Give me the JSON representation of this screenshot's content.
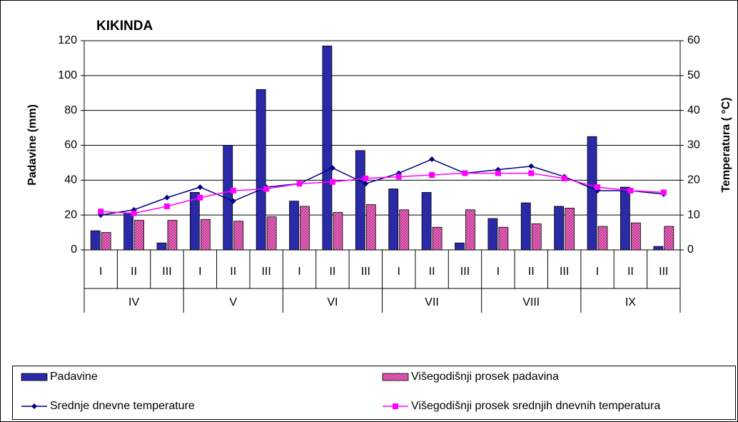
{
  "chart_data": {
    "type": "combo",
    "title": "KIKINDA",
    "y_label": "Padavine (mm)",
    "y2_label": "Temperatura ( °C)",
    "categories": [
      "I",
      "II",
      "III",
      "I",
      "II",
      "III",
      "I",
      "II",
      "III",
      "I",
      "II",
      "III",
      "I",
      "II",
      "III",
      "I",
      "II",
      "III"
    ],
    "groups": [
      "IV",
      "V",
      "VI",
      "VII",
      "VIII",
      "IX"
    ],
    "series": [
      {
        "name": "Padavine",
        "type": "bar",
        "color": "#3333cc",
        "values": [
          11,
          21,
          4,
          33,
          60,
          92,
          28,
          117,
          57,
          35,
          33,
          4,
          18,
          27,
          25,
          65,
          36,
          2
        ]
      },
      {
        "name": "Višegodišnji prosek padavina",
        "type": "bar",
        "color": "#ff66cc",
        "values": [
          10,
          17,
          17,
          17.5,
          16.5,
          19,
          25,
          21.5,
          26,
          23,
          13,
          23,
          13,
          15,
          24,
          13.5,
          15.5,
          13.5
        ]
      },
      {
        "name": "Srednje dnevne temperature",
        "type": "line",
        "axis": "y2",
        "color": "#000080",
        "marker": "diamond",
        "values": [
          10,
          11.5,
          15,
          18,
          14,
          18,
          19,
          23.5,
          19,
          22,
          26,
          22,
          23,
          24,
          21,
          17,
          17,
          16
        ]
      },
      {
        "name": "Višegodišnji prosek srednjih dnevnih temperatura",
        "type": "line",
        "axis": "y2",
        "color": "#ff00ff",
        "marker": "square",
        "values": [
          11,
          10.5,
          12.5,
          15,
          17,
          17.5,
          19,
          19.5,
          20.5,
          21,
          21.5,
          22,
          22,
          22,
          20.5,
          18,
          17,
          16.5
        ]
      }
    ],
    "ylim": [
      0,
      120
    ],
    "yticks": [
      0,
      20,
      40,
      60,
      80,
      100,
      120
    ],
    "y2lim": [
      0,
      60
    ],
    "y2ticks": [
      0,
      10,
      20,
      30,
      40,
      50,
      60
    ],
    "grid": true
  }
}
